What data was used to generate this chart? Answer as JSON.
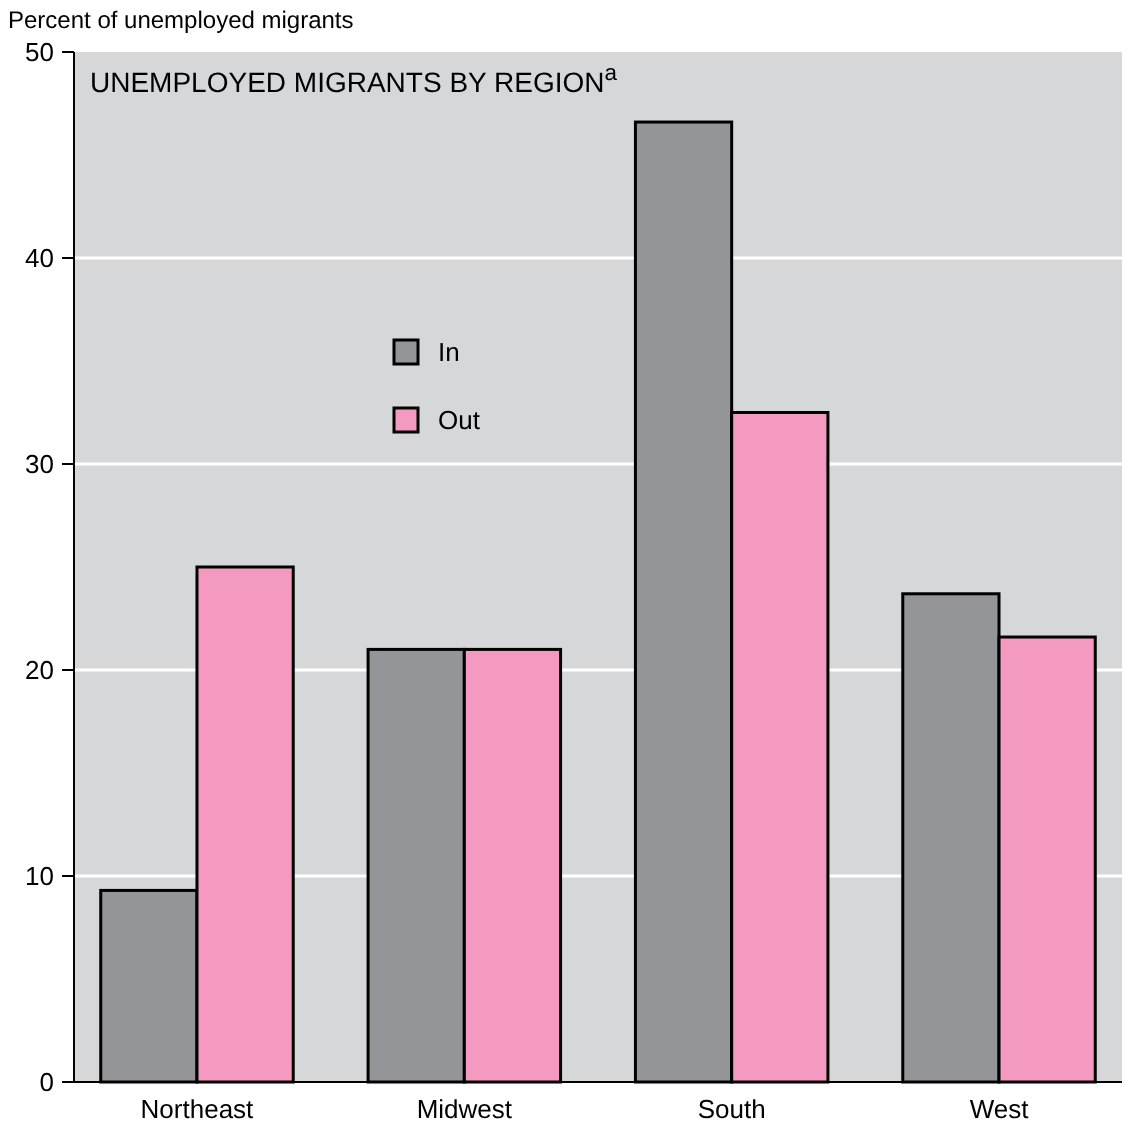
{
  "chart_data": {
    "type": "bar",
    "title": "UNEMPLOYED MIGRANTS BY REGION$^{a}$",
    "ylabel": "Percent of unemployed migrants",
    "categories": [
      "Northeast",
      "Midwest",
      "South",
      "West"
    ],
    "series": [
      {
        "name": "In",
        "color": "#939598",
        "values": [
          9.3,
          21,
          46.6,
          23.7
        ]
      },
      {
        "name": "Out",
        "color": "#f49ac1",
        "values": [
          25,
          21,
          32.5,
          21.6
        ]
      }
    ],
    "ylim": [
      0,
      50
    ],
    "yticks": [
      0,
      10,
      20,
      30,
      40,
      50
    ],
    "grid": "y",
    "legend": "top"
  }
}
